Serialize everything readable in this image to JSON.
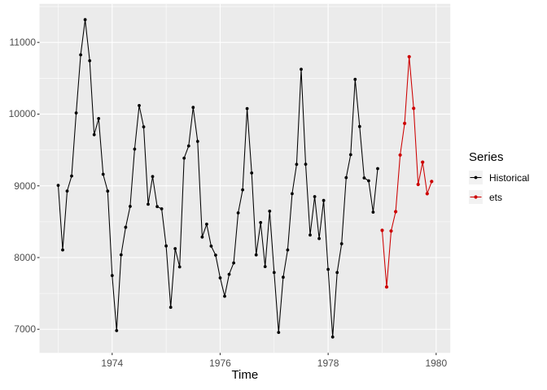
{
  "chart_data": {
    "type": "line",
    "title": "",
    "xlabel": "Time",
    "ylabel": "",
    "xlim": [
      1972.654,
      1980.262
    ],
    "ylim": [
      6671,
      11538
    ],
    "grid": true,
    "panel_background": "#ebebeb",
    "grid_color": "#ffffff",
    "tick_color": "#333333",
    "tick_label_color": "#4d4d4d",
    "x_ticks": {
      "major_values": [
        1974,
        1976,
        1978,
        1980
      ],
      "labels": [
        "1974",
        "1976",
        "1978",
        "1980"
      ],
      "minor_values": [
        1973,
        1975,
        1977,
        1979
      ]
    },
    "y_ticks": {
      "major_values": [
        7000,
        8000,
        9000,
        10000,
        11000
      ],
      "labels": [
        "7000",
        "8000",
        "9000",
        "10000",
        "11000"
      ],
      "minor_values": [
        7500,
        8500,
        9500,
        10500,
        11500
      ]
    },
    "legend": {
      "title": "Series",
      "position": "right",
      "entries": [
        {
          "label": "Historical",
          "color": "#000000"
        },
        {
          "label": "ets",
          "color": "#cd0000"
        }
      ]
    },
    "x_unit": "year",
    "x_step": 0.0833333,
    "series": [
      {
        "name": "Historical",
        "color": "#000000",
        "x_start": 1973.0,
        "values": [
          9007,
          8106,
          8928,
          9137,
          10017,
          10826,
          11317,
          10744,
          9713,
          9938,
          9161,
          8927,
          7750,
          6981,
          8038,
          8422,
          8714,
          9512,
          10120,
          9823,
          8743,
          9129,
          8710,
          8680,
          8162,
          7306,
          8124,
          7870,
          9387,
          9556,
          10093,
          9620,
          8285,
          8466,
          8160,
          8034,
          7717,
          7461,
          7767,
          7925,
          8623,
          8945,
          10078,
          9179,
          8037,
          8488,
          7874,
          8647,
          7792,
          6957,
          7726,
          8106,
          8890,
          9299,
          10625,
          9302,
          8314,
          8850,
          8265,
          8796,
          7836,
          6892,
          7791,
          8192,
          9115,
          9434,
          10484,
          9827,
          9110,
          9070,
          8633,
          9240
        ]
      },
      {
        "name": "ets",
        "color": "#cd0000",
        "x_start": 1979.0,
        "values": [
          8380,
          7590,
          8370,
          8640,
          9430,
          9870,
          10800,
          10080,
          9020,
          9330,
          8890,
          9060
        ]
      }
    ]
  }
}
